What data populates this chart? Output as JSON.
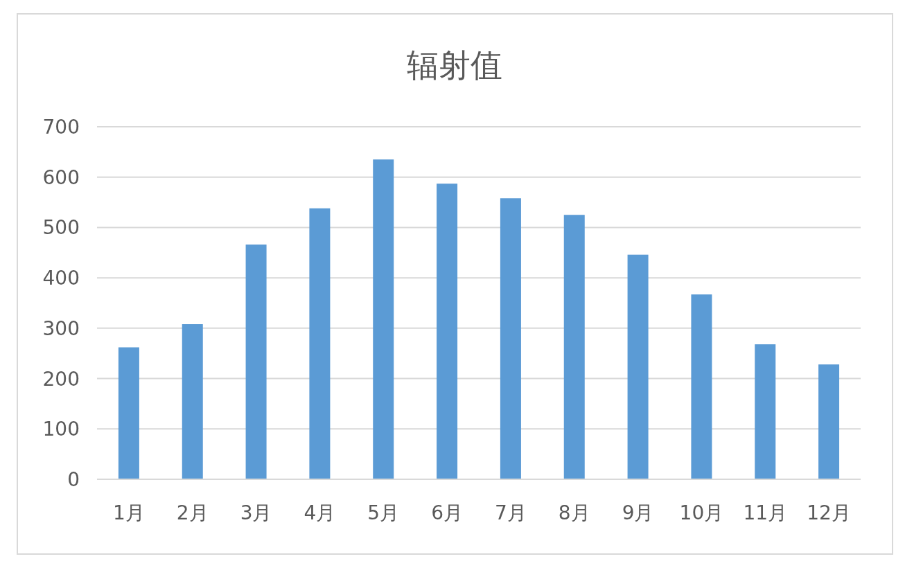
{
  "chart_data": {
    "type": "bar",
    "title": "辐射值",
    "categories": [
      "1月",
      "2月",
      "3月",
      "4月",
      "5月",
      "6月",
      "7月",
      "8月",
      "9月",
      "10月",
      "11月",
      "12月"
    ],
    "values": [
      262,
      308,
      466,
      538,
      635,
      587,
      558,
      525,
      446,
      367,
      268,
      228
    ],
    "color": "#5b9bd5",
    "ylim": [
      0,
      700
    ],
    "yticks": [
      0,
      100,
      200,
      300,
      400,
      500,
      600,
      700
    ],
    "grid": "y"
  }
}
